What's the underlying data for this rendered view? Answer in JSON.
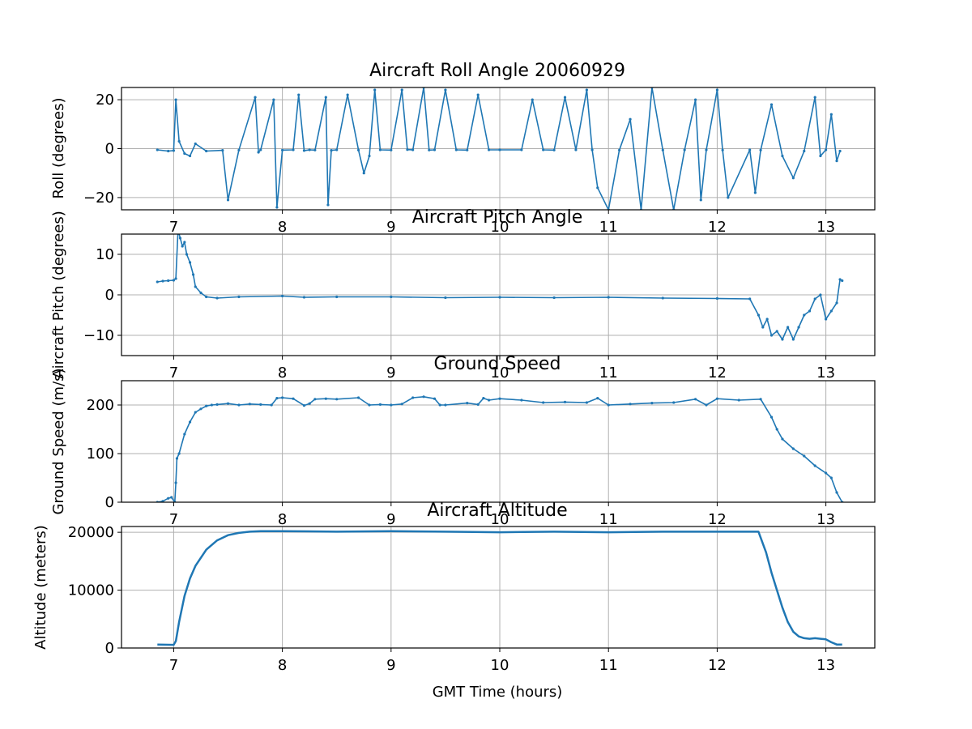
{
  "figure": {
    "xlabel": "GMT Time (hours)",
    "series_color": "#1f77b4",
    "grid_color": "#b0b0b0"
  },
  "chart_data": [
    {
      "type": "scatter",
      "title": "Aircraft Roll Angle 20060929",
      "ylabel": "Roll (degrees)",
      "xlim": [
        6.52,
        13.45
      ],
      "ylim": [
        -25,
        25
      ],
      "xticks": [
        7,
        8,
        9,
        10,
        11,
        12,
        13
      ],
      "yticks": [
        -20,
        0,
        20
      ],
      "ytick_labels": [
        "−20",
        "0",
        "20"
      ],
      "grid": true,
      "series": [
        {
          "x": [
            6.85,
            6.95,
            7.0,
            7.02,
            7.05,
            7.1,
            7.15,
            7.2,
            7.3,
            7.45,
            7.5,
            7.6,
            7.75,
            7.78,
            7.8,
            7.92,
            7.95,
            8.0,
            8.1,
            8.15,
            8.2,
            8.25,
            8.3,
            8.4,
            8.42,
            8.45,
            8.5,
            8.6,
            8.7,
            8.75,
            8.8,
            8.85,
            8.9,
            9.0,
            9.1,
            9.15,
            9.2,
            9.3,
            9.35,
            9.4,
            9.5,
            9.6,
            9.7,
            9.8,
            9.9,
            10.0,
            10.2,
            10.3,
            10.4,
            10.5,
            10.6,
            10.7,
            10.8,
            10.85,
            10.9,
            11.0,
            11.1,
            11.2,
            11.3,
            11.4,
            11.5,
            11.6,
            11.7,
            11.8,
            11.85,
            11.9,
            12.0,
            12.05,
            12.1,
            12.3,
            12.35,
            12.4,
            12.5,
            12.6,
            12.7,
            12.8,
            12.9,
            12.95,
            13.0,
            13.05,
            13.1,
            13.13
          ],
          "y": [
            -0.5,
            -1.0,
            -0.8,
            20,
            3,
            -2,
            -3,
            2,
            -1,
            -0.7,
            -21,
            -0.6,
            21,
            -1.5,
            -0.5,
            20,
            -24,
            -0.6,
            -0.5,
            22,
            -0.8,
            -0.5,
            -0.6,
            21,
            -23,
            -0.7,
            -0.5,
            22,
            -0.6,
            -10,
            -3,
            24,
            -0.5,
            -0.6,
            24,
            -0.4,
            -0.5,
            25,
            -0.6,
            -0.5,
            24,
            -0.5,
            -0.6,
            22,
            -0.5,
            -0.5,
            -0.5,
            20,
            -0.5,
            -0.6,
            21,
            -0.5,
            24,
            -0.5,
            -16,
            -25,
            -0.6,
            12,
            -25,
            25,
            -0.6,
            -25,
            -0.5,
            20,
            -21,
            -0.5,
            24,
            -0.6,
            -20,
            -0.5,
            -18,
            -0.6,
            18,
            -3,
            -12,
            -1,
            21,
            -3,
            -0.5,
            14,
            -5,
            -1.0
          ]
        }
      ]
    },
    {
      "type": "scatter",
      "title": "Aircraft Pitch Angle",
      "ylabel": "Aircraft Pitch (degrees)",
      "xlim": [
        6.52,
        13.45
      ],
      "ylim": [
        -15,
        15
      ],
      "xticks": [
        7,
        8,
        9,
        10,
        11,
        12,
        13
      ],
      "yticks": [
        -10,
        0,
        10
      ],
      "ytick_labels": [
        "−10",
        "0",
        "10"
      ],
      "grid": true,
      "series": [
        {
          "x": [
            6.85,
            6.9,
            6.95,
            7.0,
            7.02,
            7.04,
            7.06,
            7.08,
            7.1,
            7.12,
            7.15,
            7.18,
            7.2,
            7.25,
            7.3,
            7.4,
            7.6,
            8.0,
            8.2,
            8.5,
            9.0,
            9.5,
            10.0,
            10.5,
            11.0,
            11.5,
            12.0,
            12.3,
            12.38,
            12.42,
            12.46,
            12.5,
            12.55,
            12.6,
            12.65,
            12.7,
            12.75,
            12.8,
            12.85,
            12.9,
            12.95,
            13.0,
            13.05,
            13.1,
            13.13,
            13.15
          ],
          "y": [
            3.2,
            3.4,
            3.5,
            3.6,
            4,
            16,
            14,
            12,
            13,
            10,
            8,
            5,
            2,
            0.5,
            -0.5,
            -0.8,
            -0.5,
            -0.3,
            -0.6,
            -0.5,
            -0.5,
            -0.7,
            -0.6,
            -0.7,
            -0.6,
            -0.8,
            -0.9,
            -1.0,
            -5,
            -8,
            -6,
            -10,
            -9,
            -11,
            -8,
            -11,
            -8,
            -5,
            -4,
            -1,
            0,
            -6,
            -4,
            -2,
            3.8,
            3.5
          ]
        }
      ]
    },
    {
      "type": "scatter",
      "title": "Ground Speed",
      "ylabel": "Ground Speed (m/s)",
      "xlim": [
        6.52,
        13.45
      ],
      "ylim": [
        0,
        250
      ],
      "xticks": [
        7,
        8,
        9,
        10,
        11,
        12,
        13
      ],
      "yticks": [
        0,
        100,
        200
      ],
      "ytick_labels": [
        "0",
        "100",
        "200"
      ],
      "grid": true,
      "series": [
        {
          "x": [
            6.85,
            6.9,
            6.95,
            6.98,
            7.01,
            7.02,
            7.03,
            7.05,
            7.1,
            7.15,
            7.2,
            7.25,
            7.3,
            7.35,
            7.4,
            7.5,
            7.6,
            7.7,
            7.8,
            7.9,
            7.95,
            8.0,
            8.1,
            8.2,
            8.25,
            8.3,
            8.4,
            8.5,
            8.7,
            8.8,
            8.9,
            9.0,
            9.1,
            9.2,
            9.3,
            9.4,
            9.45,
            9.5,
            9.7,
            9.8,
            9.85,
            9.9,
            10.0,
            10.2,
            10.4,
            10.6,
            10.8,
            10.9,
            11.0,
            11.2,
            11.4,
            11.6,
            11.8,
            11.9,
            12.0,
            12.2,
            12.4,
            12.5,
            12.55,
            12.6,
            12.7,
            12.8,
            12.9,
            13.0,
            13.05,
            13.1,
            13.15
          ],
          "y": [
            0,
            2,
            8,
            10,
            0,
            40,
            90,
            100,
            140,
            165,
            185,
            192,
            198,
            200,
            201,
            203,
            200,
            202,
            201,
            200,
            214,
            215,
            213,
            199,
            203,
            212,
            213,
            212,
            215,
            200,
            201,
            200,
            202,
            215,
            217,
            213,
            200,
            200,
            204,
            201,
            214,
            210,
            213,
            210,
            205,
            206,
            205,
            214,
            200,
            202,
            204,
            205,
            212,
            200,
            213,
            210,
            212,
            175,
            150,
            130,
            110,
            95,
            75,
            60,
            50,
            20,
            0
          ]
        }
      ]
    },
    {
      "type": "line",
      "title": "Aircraft Altitude",
      "xlabel": "GMT Time (hours)",
      "ylabel": "Altitude (meters)",
      "xlim": [
        6.52,
        13.45
      ],
      "ylim": [
        0,
        21000
      ],
      "xticks": [
        7,
        8,
        9,
        10,
        11,
        12,
        13
      ],
      "yticks": [
        0,
        10000,
        20000
      ],
      "ytick_labels": [
        "0",
        "10000",
        "20000"
      ],
      "grid": true,
      "series": [
        {
          "x": [
            6.85,
            7.0,
            7.02,
            7.05,
            7.1,
            7.15,
            7.2,
            7.3,
            7.4,
            7.5,
            7.6,
            7.7,
            7.8,
            8.0,
            8.5,
            9.0,
            9.5,
            10.0,
            10.5,
            11.0,
            11.5,
            12.0,
            12.38,
            12.45,
            12.5,
            12.55,
            12.6,
            12.65,
            12.7,
            12.75,
            12.8,
            12.85,
            12.9,
            12.95,
            13.0,
            13.05,
            13.1,
            13.15
          ],
          "y": [
            600,
            550,
            1200,
            4500,
            9000,
            12000,
            14200,
            17000,
            18600,
            19500,
            19900,
            20100,
            20200,
            20200,
            20100,
            20200,
            20100,
            20000,
            20100,
            20000,
            20100,
            20100,
            20100,
            16500,
            13000,
            10000,
            7000,
            4500,
            2800,
            2000,
            1700,
            1600,
            1700,
            1600,
            1500,
            1000,
            600,
            600
          ]
        }
      ]
    }
  ]
}
